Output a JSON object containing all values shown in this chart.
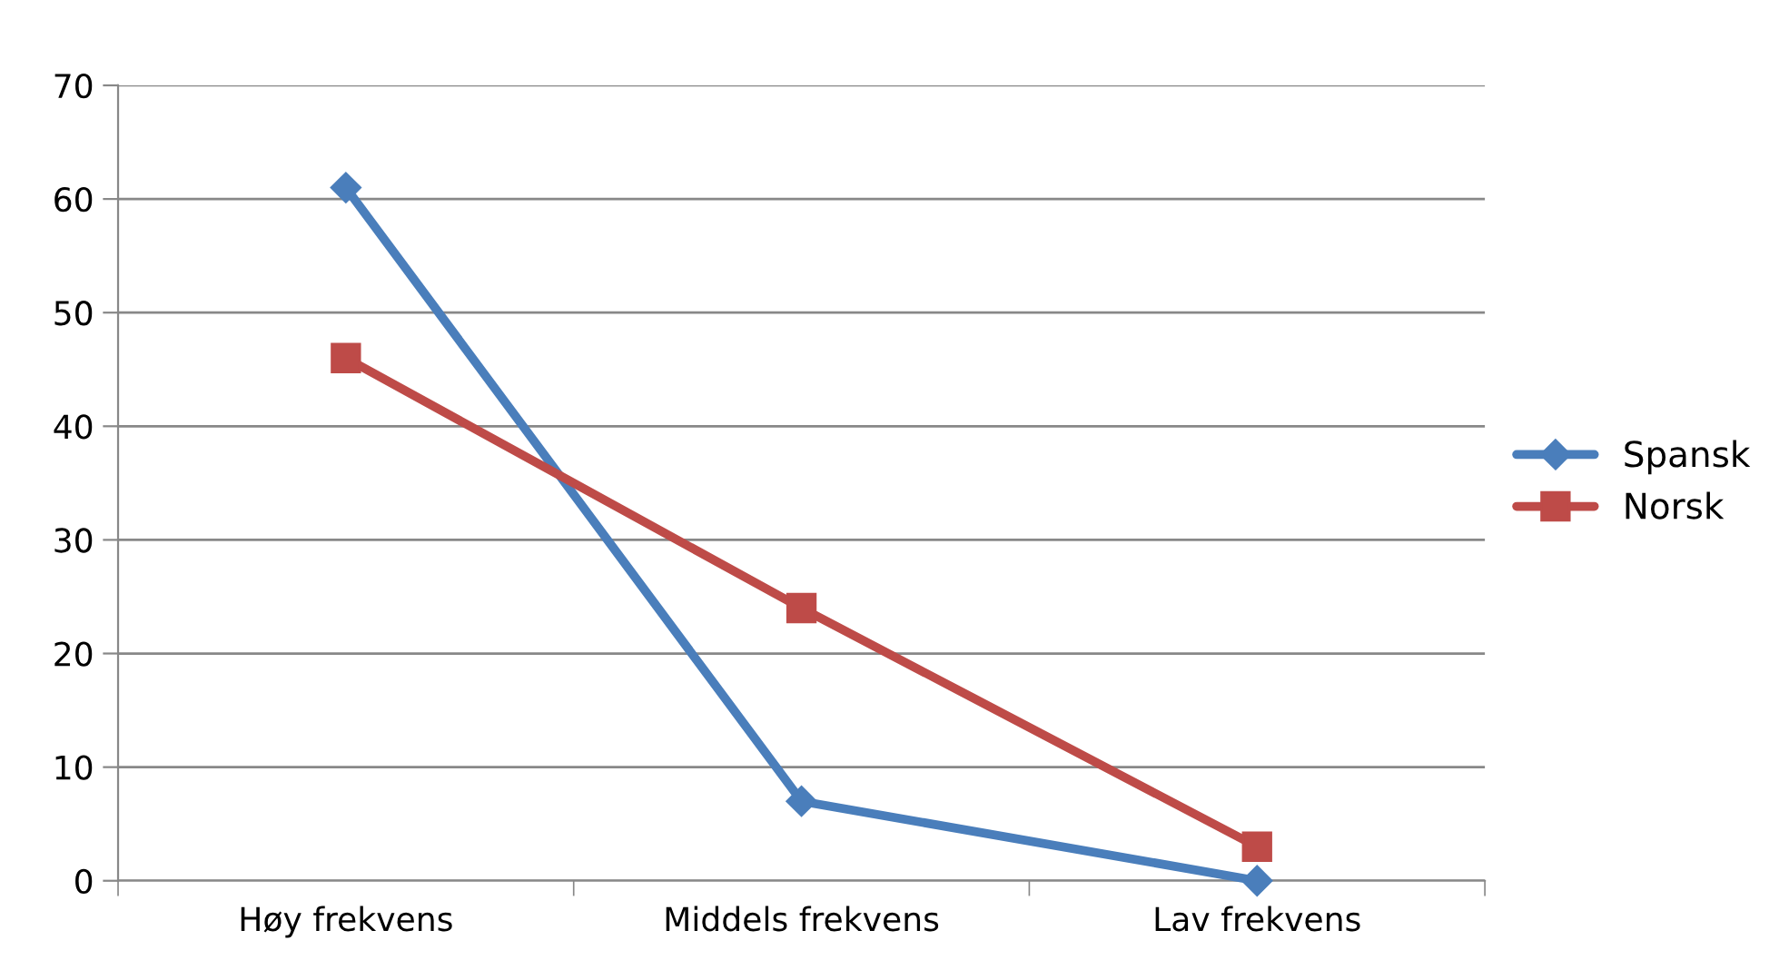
{
  "chart_data": {
    "type": "line",
    "categories": [
      "Høy frekvens",
      "Middels frekvens",
      "Lav frekvens"
    ],
    "series": [
      {
        "name": "Spansk",
        "color": "#4a7ebb",
        "marker": "diamond",
        "values": [
          61,
          7,
          0
        ]
      },
      {
        "name": "Norsk",
        "color": "#be4b48",
        "marker": "square",
        "values": [
          46,
          24,
          3
        ]
      }
    ],
    "ylim": [
      0,
      70
    ],
    "yticks": [
      0,
      10,
      20,
      30,
      40,
      50,
      60,
      70
    ],
    "grid": "y",
    "legend": "right",
    "line_style": "solid"
  }
}
